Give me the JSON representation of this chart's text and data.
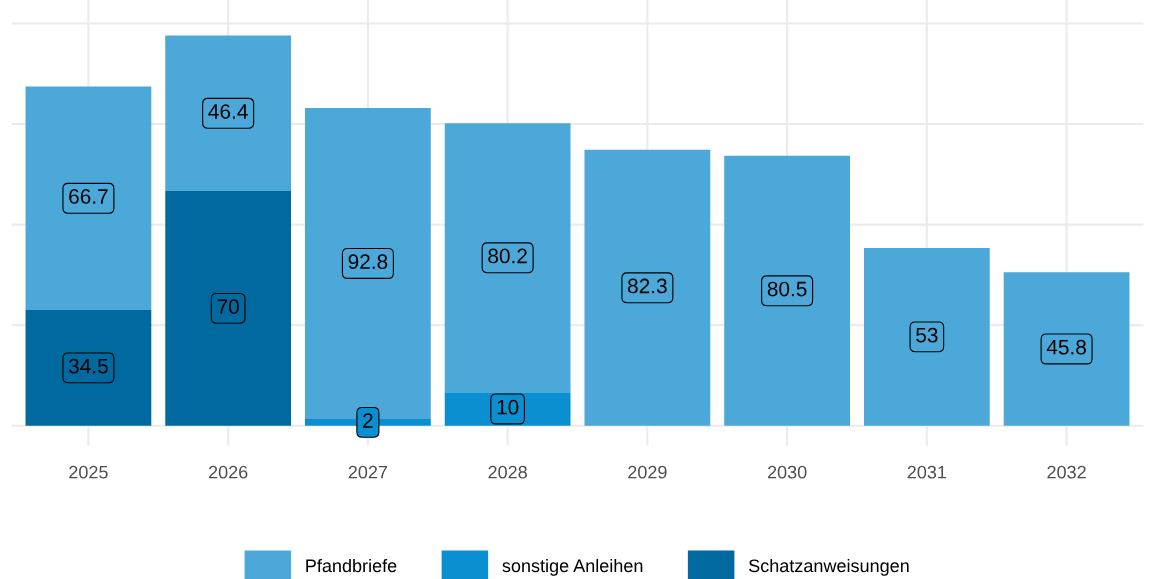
{
  "chart_data": {
    "type": "bar",
    "stacked": true,
    "categories": [
      "2025",
      "2026",
      "2027",
      "2028",
      "2029",
      "2030",
      "2031",
      "2032"
    ],
    "series": [
      {
        "name": "Schatzanweisungen",
        "color": "#00699f",
        "values": [
          34.5,
          70,
          null,
          null,
          null,
          null,
          null,
          null
        ]
      },
      {
        "name": "sonstige Anleihen",
        "color": "#0a8fd0",
        "values": [
          null,
          null,
          2,
          10,
          null,
          null,
          null,
          null
        ]
      },
      {
        "name": "Pfandbriefe",
        "color": "#4ba8d8",
        "values": [
          66.7,
          46.4,
          92.8,
          80.2,
          82.3,
          80.5,
          53,
          45.8
        ]
      }
    ],
    "ylim": [
      -6,
      127
    ],
    "yticks": [
      {
        "value": 0,
        "label": null
      },
      {
        "value": 30,
        "label": null
      },
      {
        "value": 60,
        "label": null
      },
      {
        "value": 90,
        "label": null
      },
      {
        "value": 120,
        "label": null
      }
    ],
    "tick_labels": "x",
    "grid": true,
    "legend": "bottom",
    "data_labels": true
  }
}
